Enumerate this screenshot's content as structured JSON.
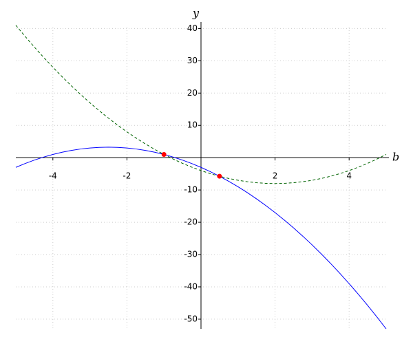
{
  "chart_data": {
    "type": "line",
    "x_label": "b",
    "y_label": "y",
    "xlim": [
      -5,
      5
    ],
    "ylim": [
      -53,
      42
    ],
    "xticks": [
      -4,
      -2,
      2,
      4
    ],
    "yticks": [
      -50,
      -40,
      -30,
      -20,
      -10,
      10,
      20,
      30,
      40
    ],
    "grid": true,
    "x": [
      -5,
      -4.75,
      -4.5,
      -4.25,
      -4,
      -3.75,
      -3.5,
      -3.25,
      -3,
      -2.75,
      -2.5,
      -2.25,
      -2,
      -1.75,
      -1.5,
      -1.25,
      -1,
      -0.75,
      -0.5,
      -0.25,
      0,
      0.25,
      0.5,
      0.75,
      1,
      1.25,
      1.5,
      1.75,
      2,
      2.25,
      2.5,
      2.75,
      3,
      3.25,
      3.5,
      3.75,
      4,
      4.25,
      4.5,
      4.75,
      5
    ],
    "series": [
      {
        "color": "#0000ff",
        "style": "solid",
        "values": [
          -3,
          -1.8125,
          -0.75,
          0.1875,
          1,
          1.6875,
          2.25,
          2.6875,
          3,
          3.1875,
          3.25,
          3.1875,
          3,
          2.6875,
          2.25,
          1.6875,
          1,
          0.1875,
          -0.75,
          -1.8125,
          -3,
          -4.3125,
          -5.75,
          -7.3125,
          -9,
          -10.8125,
          -12.75,
          -14.8125,
          -17,
          -19.3125,
          -21.75,
          -24.3125,
          -27,
          -29.8125,
          -32.75,
          -35.8125,
          -39,
          -42.3125,
          -45.75,
          -49.3125,
          -53
        ]
      },
      {
        "color": "#006400",
        "style": "dashed",
        "values": [
          41,
          37.5625,
          34.25,
          31.0625,
          28,
          25.0625,
          22.25,
          19.5625,
          17,
          14.5625,
          12.25,
          10.0625,
          8,
          6.0625,
          4.25,
          2.5625,
          1,
          -0.4375,
          -1.75,
          -2.9375,
          -4,
          -4.9375,
          -5.75,
          -6.4375,
          -7,
          -7.4375,
          -7.75,
          -7.9375,
          -8,
          -7.9375,
          -7.75,
          -7.4375,
          -7,
          -6.4375,
          -5.75,
          -4.9375,
          -4,
          -2.9375,
          -1.75,
          -0.4375,
          1
        ]
      }
    ],
    "points": {
      "color": "#ff0000",
      "x": [
        -1,
        0.5
      ],
      "y": [
        1,
        -5.75
      ]
    }
  }
}
